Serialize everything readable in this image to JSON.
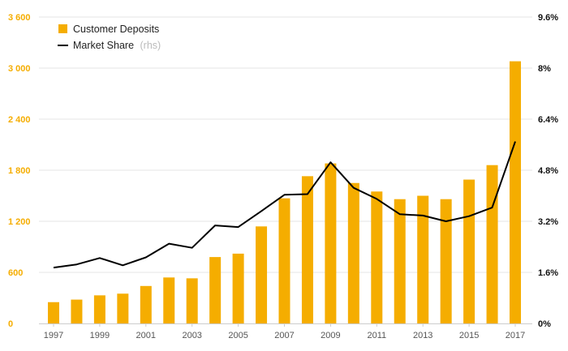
{
  "chart_data": {
    "type": "bar+line",
    "colors": {
      "bars": "#f5ad00",
      "line": "#000000",
      "left_ticks": "#f5ad00",
      "grid": "#e6e6e6"
    },
    "x": [
      1997,
      1998,
      1999,
      2000,
      2001,
      2002,
      2003,
      2004,
      2005,
      2006,
      2007,
      2008,
      2009,
      2010,
      2011,
      2012,
      2013,
      2014,
      2015,
      2016,
      2017
    ],
    "x_tick_labels": [
      "1997",
      "1999",
      "2001",
      "2003",
      "2005",
      "2007",
      "2009",
      "2011",
      "2013",
      "2015",
      "2017"
    ],
    "y_left": {
      "ylim": [
        0,
        3600
      ],
      "ticks": [
        0,
        600,
        1200,
        1800,
        2400,
        3000,
        3600
      ],
      "tick_labels": [
        "0",
        "600",
        "1 200",
        "1 800",
        "2 400",
        "3 000",
        "3 600"
      ]
    },
    "y_right": {
      "ylim": [
        0,
        9.6
      ],
      "ticks": [
        0,
        1.6,
        3.2,
        4.8,
        6.4,
        8.0,
        9.6
      ],
      "tick_labels": [
        "0%",
        "1.6%",
        "3.2%",
        "4.8%",
        "6.4%",
        "8%",
        "9.6%"
      ]
    },
    "grid": true,
    "legend_position": "top-left",
    "series": [
      {
        "name": "Customer Deposits",
        "type": "bar",
        "axis": "left",
        "values": [
          250,
          280,
          330,
          350,
          440,
          540,
          530,
          780,
          820,
          1140,
          1470,
          1730,
          1880,
          1650,
          1550,
          1460,
          1500,
          1460,
          1690,
          1860,
          3080
        ]
      },
      {
        "name": "Market Share",
        "name_suffix": "(rhs)",
        "type": "line",
        "axis": "right",
        "values": [
          1.75,
          1.85,
          2.05,
          1.82,
          2.07,
          2.5,
          2.37,
          3.07,
          3.02,
          3.52,
          4.03,
          4.05,
          5.05,
          4.25,
          3.9,
          3.42,
          3.38,
          3.2,
          3.36,
          3.63,
          5.7
        ]
      }
    ]
  }
}
